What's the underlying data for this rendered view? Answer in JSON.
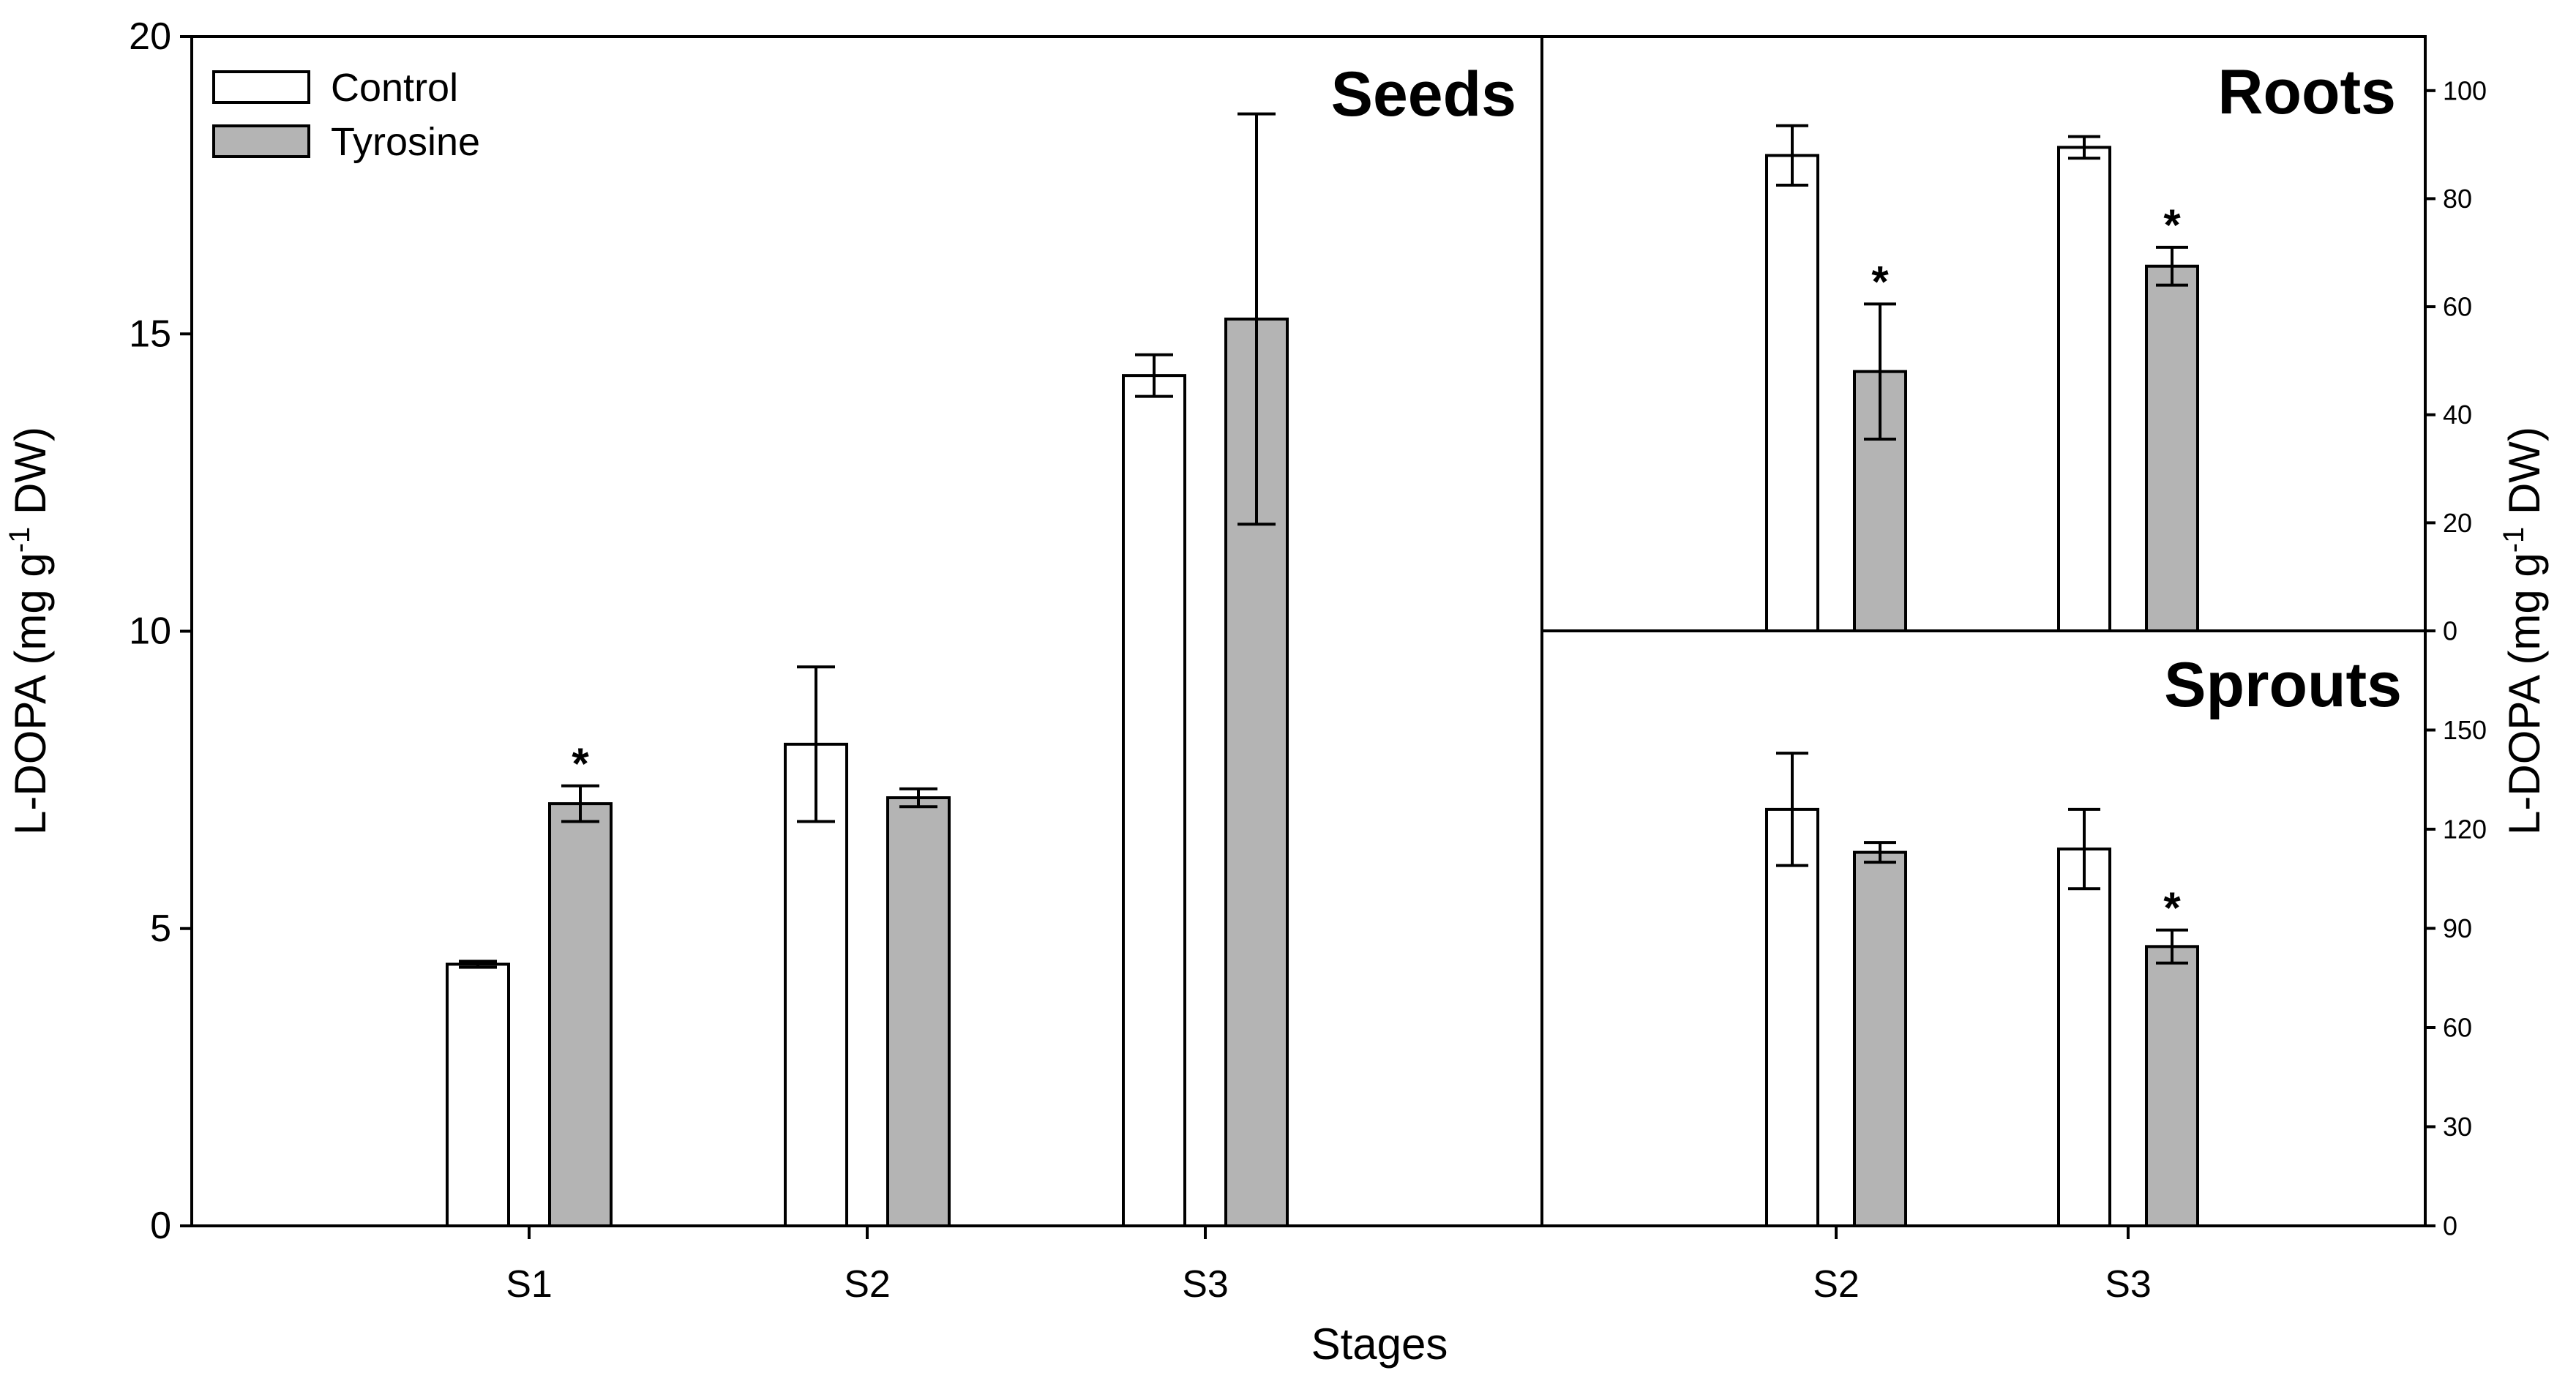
{
  "chart_data": [
    {
      "type": "bar",
      "title": "Seeds",
      "categories": [
        "S1",
        "S2",
        "S3"
      ],
      "series": [
        {
          "name": "Control",
          "values": [
            4.4,
            8.1,
            14.3
          ],
          "errors": [
            0.05,
            1.3,
            0.35
          ],
          "significant": [
            false,
            false,
            false
          ]
        },
        {
          "name": "Tyrosine",
          "values": [
            7.1,
            7.2,
            15.25
          ],
          "errors": [
            0.3,
            0.15,
            3.45
          ],
          "significant": [
            true,
            false,
            false
          ]
        }
      ],
      "xlabel": "Stages",
      "ylabel": "L-DOPA (mg g-1 DW)",
      "ylim": [
        0,
        20
      ],
      "yticks": [
        0,
        5,
        10,
        15,
        20
      ],
      "legend_position": "top-left"
    },
    {
      "type": "bar",
      "title": "Roots",
      "categories": [
        "S2",
        "S3"
      ],
      "series": [
        {
          "name": "Control",
          "values": [
            88,
            89.5
          ],
          "errors": [
            5.5,
            2
          ],
          "significant": [
            false,
            false
          ]
        },
        {
          "name": "Tyrosine",
          "values": [
            48,
            67.5
          ],
          "errors": [
            12.5,
            3.5
          ],
          "significant": [
            true,
            true
          ]
        }
      ],
      "ylim": [
        0,
        110
      ],
      "yticks": [
        0,
        20,
        40,
        60,
        80,
        100
      ]
    },
    {
      "type": "bar",
      "title": "Sprouts",
      "categories": [
        "S2",
        "S3"
      ],
      "series": [
        {
          "name": "Control",
          "values": [
            126,
            114
          ],
          "errors": [
            17,
            12
          ],
          "significant": [
            false,
            false
          ]
        },
        {
          "name": "Tyrosine",
          "values": [
            113,
            84.5
          ],
          "errors": [
            3,
            5
          ],
          "significant": [
            false,
            true
          ]
        }
      ],
      "ylim": [
        0,
        180
      ],
      "yticks": [
        0,
        30,
        60,
        90,
        120,
        150
      ]
    }
  ],
  "labels": {
    "right_ylabel": "L-DOPA (mg g-1 DW)",
    "significance_marker": "*"
  },
  "colors": {
    "Control": "#ffffff",
    "Tyrosine": "#b4b4b4",
    "stroke": "#000000"
  }
}
